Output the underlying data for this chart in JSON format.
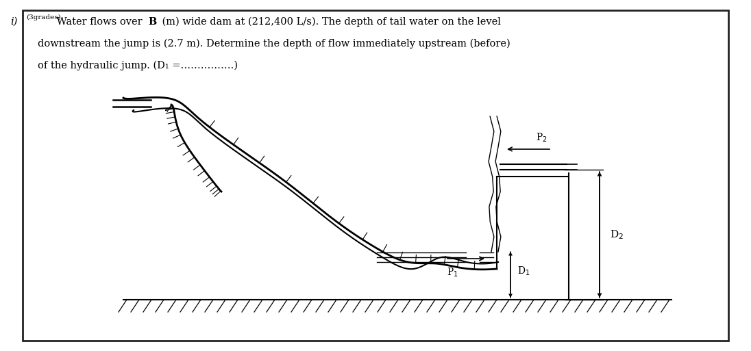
{
  "bg_color": "#ffffff",
  "border_color": "#222222",
  "line_color": "#000000",
  "fig_width": 10.96,
  "fig_height": 5.13,
  "text_line1_i": "i)",
  "text_line1_grades": "(3grades)",
  "text_line1_main": " Water flows over ",
  "text_bold_B": "B",
  "text_line1_rest": " (m) wide dam at (212,400 L/s). The depth of tail water on the level",
  "text_line2": "downstream the jump is (2.7 m). Determine the depth of flow immediately upstream (before)",
  "text_line3": "of the hydraulic jump. (D₁ =…………….)",
  "font_size_main": 10.5,
  "font_size_small": 7.5
}
